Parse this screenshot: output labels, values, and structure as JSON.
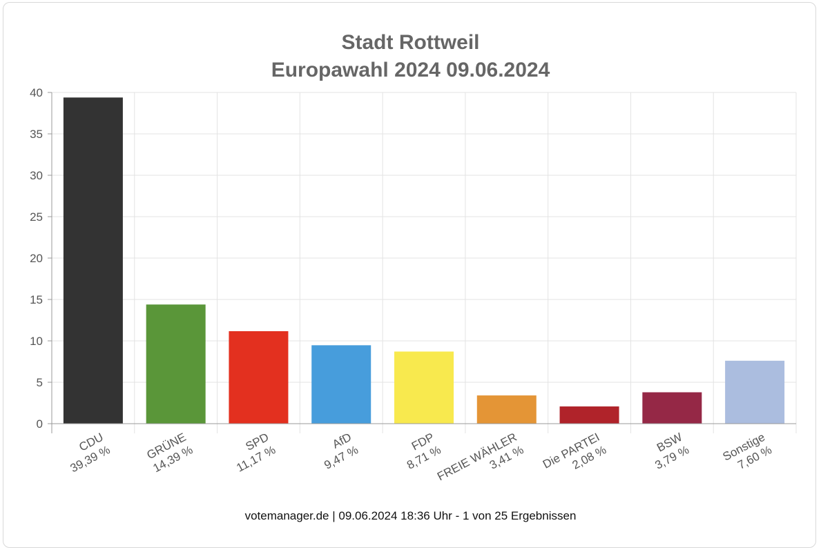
{
  "colors": {
    "grid": "#e3e3e3",
    "axis": "#999999",
    "tick_text": "#555555",
    "title": "#666666"
  },
  "chart_data": {
    "type": "bar",
    "title": "Stadt Rottweil",
    "subtitle": "Europawahl 2024 09.06.2024",
    "xlabel": "",
    "ylabel": "",
    "ylim": [
      0,
      40
    ],
    "yticks": [
      0,
      5,
      10,
      15,
      20,
      25,
      30,
      35,
      40
    ],
    "grid": true,
    "categories": [
      "CDU",
      "GRÜNE",
      "SPD",
      "AfD",
      "FDP",
      "FREIE WÄHLER",
      "Die PARTEI",
      "BSW",
      "Sonstige"
    ],
    "values": [
      39.39,
      14.39,
      11.17,
      9.47,
      8.71,
      3.41,
      2.08,
      3.79,
      7.6
    ],
    "value_labels": [
      "39,39 %",
      "14,39 %",
      "11,17 %",
      "9,47 %",
      "8,71 %",
      "3,41 %",
      "2,08 %",
      "3,79 %",
      "7,60 %"
    ],
    "bar_colors": [
      "#333333",
      "#5a9639",
      "#e3301f",
      "#479ddc",
      "#f8e94e",
      "#e49536",
      "#b0232a",
      "#952846",
      "#abbddf"
    ]
  },
  "footer": "votemanager.de | 09.06.2024 18:36 Uhr - 1 von 25 Ergebnissen"
}
